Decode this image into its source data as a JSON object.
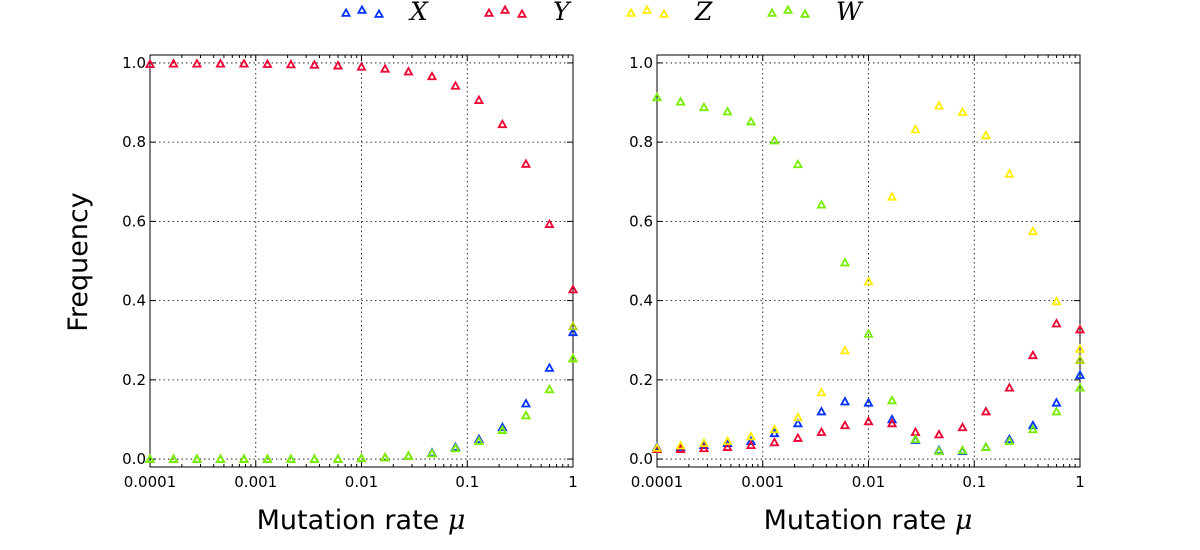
{
  "chart_data": {
    "type": "scatter",
    "x_scale": "log",
    "xlim": [
      0.0001,
      1
    ],
    "ylim": [
      -0.02,
      1.02
    ],
    "grid": true,
    "ylabel": "Frequency",
    "xlabel_text": "Mutation rate",
    "xlabel_symbol": "μ",
    "legend_placement": "top-center",
    "x_ticks": [
      "0.0001",
      "0.001",
      "0.01",
      "0.1",
      "1"
    ],
    "y_ticks": [
      "0.0",
      "0.2",
      "0.4",
      "0.6",
      "0.8",
      "1.0"
    ],
    "legend": [
      {
        "name": "X",
        "color": "#0033ff"
      },
      {
        "name": "Y",
        "color": "#ee0033"
      },
      {
        "name": "Z",
        "color": "#ffee00"
      },
      {
        "name": "W",
        "color": "#77ee00"
      }
    ],
    "x": [
      0.0001,
      0.000167,
      0.000278,
      0.000464,
      0.000774,
      0.00129,
      0.00215,
      0.00359,
      0.00599,
      0.01,
      0.0167,
      0.0278,
      0.0464,
      0.0774,
      0.129,
      0.215,
      0.359,
      0.599,
      1.0
    ],
    "panels": [
      {
        "series": [
          {
            "name": "X",
            "color": "#0033ff",
            "values": [
              0.0,
              0.0,
              0.0,
              0.0,
              0.0,
              0.0,
              0.0,
              0.0,
              0.0,
              0.002,
              0.004,
              0.008,
              0.016,
              0.03,
              0.05,
              0.08,
              0.14,
              0.23,
              0.32
            ]
          },
          {
            "name": "Y",
            "color": "#ee0033",
            "values": [
              0.997,
              0.998,
              0.998,
              0.998,
              0.998,
              0.997,
              0.996,
              0.995,
              0.993,
              0.99,
              0.985,
              0.978,
              0.966,
              0.942,
              0.906,
              0.845,
              0.745,
              0.593,
              0.428
            ]
          },
          {
            "name": "Z",
            "color": "#ffee00",
            "values": [
              0.0,
              0.0,
              0.0,
              0.0,
              0.0,
              0.0,
              0.0,
              0.0,
              0.0,
              0.002,
              0.004,
              0.008,
              0.014,
              0.027,
              0.045,
              0.073,
              0.11,
              0.176,
              0.254
            ]
          },
          {
            "name": "W",
            "color": "#77ee00",
            "values": [
              0.0,
              0.0,
              0.0,
              0.0,
              0.0,
              0.0,
              0.0,
              0.0,
              0.0,
              0.002,
              0.004,
              0.008,
              0.014,
              0.027,
              0.045,
              0.073,
              0.11,
              0.176,
              0.254
            ]
          }
        ],
        "end_point": {
          "x": 1.0,
          "y": 0.335,
          "color": "#aacc00"
        }
      },
      {
        "series": [
          {
            "name": "X",
            "color": "#0033ff",
            "values": [
              0.03,
              0.03,
              0.035,
              0.04,
              0.045,
              0.065,
              0.09,
              0.12,
              0.145,
              0.142,
              0.1,
              0.048,
              0.022,
              0.02,
              0.03,
              0.05,
              0.085,
              0.142,
              0.212
            ]
          },
          {
            "name": "Y",
            "color": "#ee0033",
            "values": [
              0.025,
              0.025,
              0.027,
              0.03,
              0.035,
              0.042,
              0.053,
              0.068,
              0.085,
              0.095,
              0.09,
              0.068,
              0.062,
              0.08,
              0.12,
              0.18,
              0.262,
              0.342,
              0.327
            ]
          },
          {
            "name": "Z",
            "color": "#ffee00",
            "values": [
              0.028,
              0.034,
              0.04,
              0.045,
              0.057,
              0.075,
              0.105,
              0.168,
              0.274,
              0.448,
              0.662,
              0.832,
              0.892,
              0.876,
              0.817,
              0.72,
              0.575,
              0.398,
              0.278
            ]
          },
          {
            "name": "W",
            "color": "#77ee00",
            "values": [
              0.913,
              0.902,
              0.888,
              0.877,
              0.852,
              0.804,
              0.744,
              0.642,
              0.496,
              0.316,
              0.148,
              0.05,
              0.02,
              0.022,
              0.03,
              0.045,
              0.075,
              0.12,
              0.18
            ]
          }
        ],
        "end_point": {
          "x": 1.0,
          "y": 0.25,
          "color": "#aacc00"
        }
      }
    ]
  }
}
